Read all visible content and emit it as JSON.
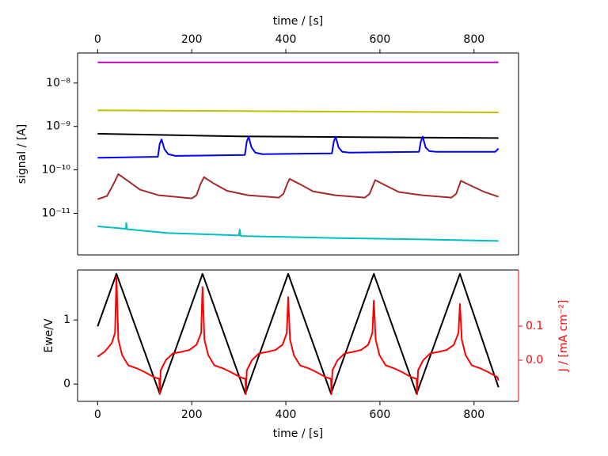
{
  "chart_data": [
    {
      "type": "line",
      "x_label": "time / [s]",
      "x_axis_position": "top",
      "y_label": "signal / [A]",
      "yscale": "log",
      "xlim": [
        -42.6,
        894.6
      ],
      "xticks": [
        0,
        200,
        400,
        600,
        800
      ],
      "ylim": [
        1.1e-12,
        4.9e-08
      ],
      "yticks": [
        {
          "value": 1e-11,
          "label": "10⁻¹¹"
        },
        {
          "value": 1e-10,
          "label": "10⁻¹⁰"
        },
        {
          "value": 1e-09,
          "label": "10⁻⁹"
        },
        {
          "value": 1e-08,
          "label": "10⁻⁸"
        }
      ],
      "series": [
        {
          "color": "#bf00bf",
          "x": [
            0,
            426,
            852
          ],
          "values": [
            3e-08,
            3e-08,
            3e-08
          ]
        },
        {
          "color": "#bfbf00",
          "x": [
            0,
            852
          ],
          "values": [
            2.35e-09,
            2.1e-09
          ]
        },
        {
          "color": "#000000",
          "x": [
            0,
            300,
            852
          ],
          "values": [
            6.8e-10,
            5.9e-10,
            5.4e-10
          ]
        },
        {
          "color": "#0000ff",
          "x": [
            0,
            128,
            132,
            136,
            142,
            150,
            165,
            313,
            317,
            321,
            327,
            335,
            350,
            498,
            502,
            506,
            512,
            520,
            535,
            683,
            687,
            691,
            697,
            705,
            720,
            845,
            852
          ],
          "values": [
            1.9e-10,
            2e-10,
            4e-10,
            5e-10,
            3e-10,
            2.3e-10,
            2.1e-10,
            2.2e-10,
            4.5e-10,
            5.8e-10,
            3.3e-10,
            2.5e-10,
            2.3e-10,
            2.4e-10,
            4.5e-10,
            5.8e-10,
            3.3e-10,
            2.6e-10,
            2.5e-10,
            2.6e-10,
            4.5e-10,
            5.8e-10,
            3.3e-10,
            2.7e-10,
            2.6e-10,
            2.6e-10,
            3.1e-10
          ]
        },
        {
          "color": "#a52a2a",
          "x": [
            0,
            20,
            35,
            44,
            60,
            90,
            130,
            200,
            210,
            218,
            226,
            245,
            275,
            320,
            385,
            395,
            402,
            408,
            428,
            458,
            505,
            568,
            578,
            585,
            590,
            610,
            640,
            690,
            752,
            762,
            768,
            772,
            792,
            822,
            852
          ],
          "values": [
            2.1e-11,
            2.5e-11,
            5e-11,
            8e-11,
            6e-11,
            3.5e-11,
            2.6e-11,
            2.2e-11,
            2.6e-11,
            4.5e-11,
            6.8e-11,
            5e-11,
            3.3e-11,
            2.6e-11,
            2.3e-11,
            2.8e-11,
            4.5e-11,
            6.2e-11,
            4.8e-11,
            3.2e-11,
            2.6e-11,
            2.3e-11,
            2.8e-11,
            4.3e-11,
            5.8e-11,
            4.5e-11,
            3.1e-11,
            2.6e-11,
            2.3e-11,
            2.8e-11,
            4.2e-11,
            5.6e-11,
            4.4e-11,
            3.1e-11,
            2.4e-11
          ]
        },
        {
          "color": "#00bfbf",
          "x": [
            0,
            60,
            61,
            62,
            150,
            300,
            302,
            304,
            500,
            700,
            852
          ],
          "values": [
            5e-12,
            4.4e-12,
            6e-12,
            4.3e-12,
            3.5e-12,
            3.1e-12,
            4.2e-12,
            3e-12,
            2.7e-12,
            2.5e-12,
            2.3e-12
          ]
        }
      ]
    },
    {
      "type": "line",
      "x_label": "time / [s]",
      "y_label": "Ewe/V",
      "y2_label": "J / [mA cm⁻²]",
      "xlim": [
        -42.6,
        894.6
      ],
      "xticks": [
        0,
        200,
        400,
        600,
        800
      ],
      "ylim": [
        -0.27,
        1.78
      ],
      "yticks": [
        0,
        1
      ],
      "y2lim": [
        -0.121,
        0.265
      ],
      "y2ticks": [
        {
          "value": 0,
          "label": "0.0"
        },
        0.1
      ],
      "series": [
        {
          "color": "#000000",
          "x": [
            0,
            40,
            132,
            223,
            314,
            405,
            496,
            587,
            678,
            770,
            852
          ],
          "values": [
            0.9,
            1.72,
            -0.15,
            1.72,
            -0.15,
            1.72,
            -0.15,
            1.72,
            -0.15,
            1.72,
            -0.05
          ]
        },
        {
          "color": "#ff0000",
          "axis": "y2",
          "x": [
            0,
            15,
            30,
            37,
            40,
            44,
            52,
            65,
            85,
            100,
            120,
            131,
            132,
            134,
            145,
            160,
            180,
            195,
            210,
            220,
            223,
            227,
            235,
            248,
            268,
            283,
            303,
            314,
            315,
            317,
            328,
            343,
            363,
            378,
            393,
            402,
            405,
            409,
            417,
            430,
            450,
            465,
            485,
            496,
            497,
            499,
            510,
            525,
            545,
            560,
            575,
            584,
            587,
            591,
            599,
            612,
            632,
            647,
            667,
            678,
            679,
            681,
            692,
            707,
            727,
            742,
            757,
            767,
            770,
            774,
            782,
            795,
            815,
            830,
            850,
            852
          ],
          "values": [
            0.01,
            0.025,
            0.05,
            0.08,
            0.245,
            0.06,
            0.015,
            -0.015,
            -0.025,
            -0.035,
            -0.05,
            -0.055,
            -0.1,
            -0.03,
            0.0,
            0.02,
            0.025,
            0.03,
            0.045,
            0.08,
            0.215,
            0.06,
            0.015,
            -0.015,
            -0.025,
            -0.035,
            -0.05,
            -0.055,
            -0.1,
            -0.03,
            0.0,
            0.02,
            0.025,
            0.03,
            0.045,
            0.08,
            0.185,
            0.06,
            0.015,
            -0.015,
            -0.025,
            -0.035,
            -0.05,
            -0.055,
            -0.1,
            -0.03,
            0.0,
            0.02,
            0.025,
            0.03,
            0.045,
            0.08,
            0.175,
            0.06,
            0.015,
            -0.015,
            -0.025,
            -0.035,
            -0.05,
            -0.055,
            -0.1,
            -0.03,
            0.0,
            0.02,
            0.025,
            0.03,
            0.045,
            0.08,
            0.165,
            0.06,
            0.015,
            -0.015,
            -0.025,
            -0.035,
            -0.05,
            -0.06
          ]
        }
      ]
    }
  ]
}
